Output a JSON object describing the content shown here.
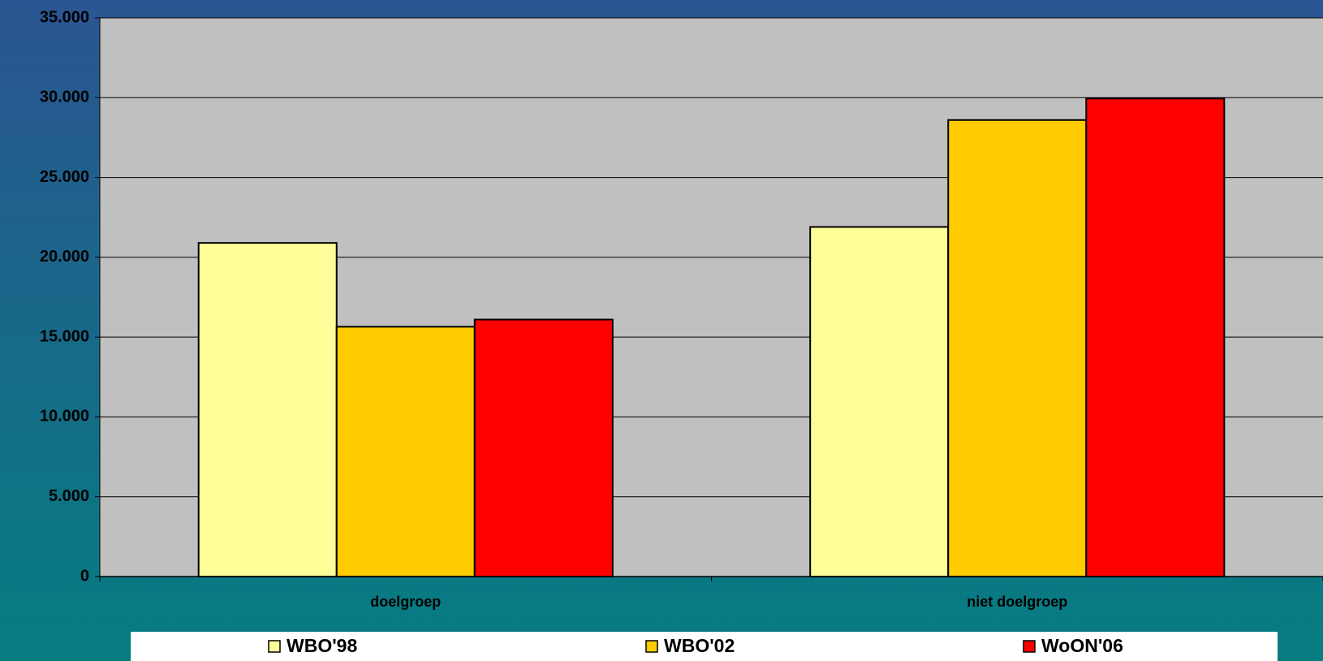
{
  "chart_data": {
    "type": "bar",
    "categories": [
      "doelgroep",
      "niet doelgroep"
    ],
    "series": [
      {
        "name": "WBO'98",
        "color": "#ffff99",
        "values": [
          20900,
          21900
        ]
      },
      {
        "name": "WBO'02",
        "color": "#ffcc00",
        "values": [
          15650,
          28600
        ]
      },
      {
        "name": "WoON'06",
        "color": "#ff0000",
        "values": [
          16100,
          29950
        ]
      }
    ],
    "ylim": [
      0,
      35000
    ],
    "yticks": [
      0,
      {
        "value": 5000,
        "label": "5.000"
      },
      {
        "value": 10000,
        "label": "10.000"
      },
      {
        "value": 15000,
        "label": "15.000"
      },
      {
        "value": 20000,
        "label": "20.000"
      },
      {
        "value": 25000,
        "label": "25.000"
      },
      {
        "value": 30000,
        "label": "30.000"
      },
      {
        "value": 35000,
        "label": "35.000"
      }
    ],
    "grid": true,
    "legend": "bottom"
  }
}
